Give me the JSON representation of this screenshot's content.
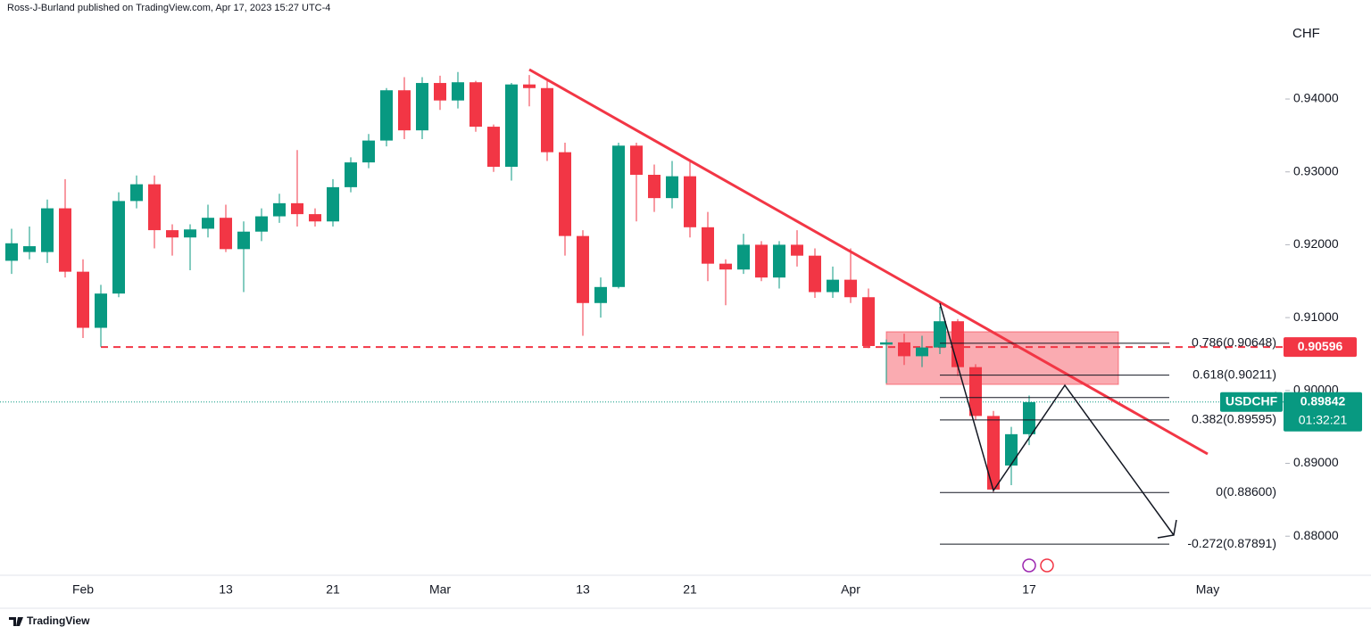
{
  "chart_data": {
    "type": "candlestick",
    "header": "Ross-J-Burland published on TradingView.com, Apr 17, 2023 15:27 UTC-4",
    "brand": "TradingView",
    "axis_title": "CHF",
    "symbol": "USDCHF",
    "countdown": "01:32:21",
    "up_color": "#089981",
    "down_color": "#f23645",
    "categories": [
      null,
      null,
      null,
      null,
      "Feb",
      null,
      null,
      null,
      null,
      null,
      null,
      null,
      "13",
      null,
      null,
      null,
      null,
      null,
      "21",
      null,
      null,
      null,
      null,
      null,
      "Mar",
      null,
      null,
      null,
      null,
      null,
      null,
      null,
      "13",
      null,
      null,
      null,
      null,
      null,
      "21",
      null,
      null,
      null,
      null,
      null,
      null,
      null,
      null,
      "Apr",
      null,
      null,
      null,
      null,
      null,
      null,
      null,
      null,
      null,
      "17",
      null,
      null,
      null,
      null,
      null,
      null,
      null,
      null,
      null,
      "May",
      null,
      null,
      null,
      null
    ],
    "open": [
      0.9178,
      0.919,
      0.919,
      0.925,
      0.9163,
      0.9086,
      0.9133,
      0.926,
      0.9283,
      0.922,
      0.921,
      0.9222,
      0.9237,
      0.9194,
      0.9218,
      0.9239,
      0.9257,
      0.9242,
      0.9232,
      0.9279,
      0.9313,
      0.9343,
      0.9412,
      0.9357,
      0.9422,
      0.9398,
      0.9423,
      0.9362,
      0.9307,
      0.942,
      0.9415,
      0.9327,
      0.9212,
      0.912,
      0.9142,
      0.9336,
      0.9296,
      0.9264,
      0.9294,
      0.9224,
      0.9174,
      0.9166,
      0.92,
      0.9155,
      0.92,
      0.9185,
      0.9135,
      0.9152,
      0.9128,
      0.9063,
      0.9066,
      0.9047,
      0.9059,
      0.9095,
      0.9032,
      0.8965,
      0.8897,
      0.894,
      null,
      null,
      null,
      null,
      null,
      null,
      null,
      null,
      null,
      null,
      null,
      null,
      null,
      null
    ],
    "high": [
      0.9222,
      0.9225,
      0.9262,
      0.929,
      0.918,
      0.9145,
      0.9272,
      0.9295,
      0.9295,
      0.9228,
      0.9228,
      0.9255,
      0.9255,
      0.9232,
      0.925,
      0.927,
      0.933,
      0.925,
      0.929,
      0.932,
      0.9352,
      0.9415,
      0.943,
      0.943,
      0.9432,
      0.9437,
      0.9425,
      0.9365,
      0.9422,
      0.9433,
      0.9425,
      0.934,
      0.922,
      0.9155,
      0.934,
      0.934,
      0.931,
      0.9315,
      0.9315,
      0.9245,
      0.918,
      0.9215,
      0.9205,
      0.9205,
      0.922,
      0.9195,
      0.917,
      0.9195,
      0.914,
      0.907,
      0.9078,
      0.9075,
      0.9115,
      0.9098,
      0.9036,
      0.8972,
      0.895,
      0.8993,
      null,
      null,
      null,
      null,
      null,
      null,
      null,
      null,
      null,
      null,
      null,
      null,
      null,
      null
    ],
    "low": [
      0.916,
      0.918,
      0.9175,
      0.9155,
      0.9072,
      0.906,
      0.9128,
      0.925,
      0.9195,
      0.9185,
      0.9165,
      0.921,
      0.919,
      0.9135,
      0.9205,
      0.923,
      0.9225,
      0.9225,
      0.9225,
      0.9272,
      0.9305,
      0.9335,
      0.9345,
      0.9345,
      0.9385,
      0.9387,
      0.9355,
      0.93,
      0.9288,
      0.939,
      0.9315,
      0.9185,
      0.9075,
      0.91,
      0.914,
      0.9232,
      0.9245,
      0.925,
      0.921,
      0.915,
      0.9117,
      0.916,
      0.915,
      0.914,
      0.917,
      0.9127,
      0.9127,
      0.912,
      0.9058,
      0.901,
      0.9035,
      0.9032,
      0.905,
      0.902,
      0.896,
      0.886,
      0.887,
      0.8925,
      null,
      null,
      null,
      null,
      null,
      null,
      null,
      null,
      null,
      null,
      null,
      null,
      null,
      null
    ],
    "close": [
      0.9202,
      0.9198,
      0.925,
      0.9163,
      0.9086,
      0.9133,
      0.926,
      0.9283,
      0.922,
      0.921,
      0.9221,
      0.9237,
      0.9194,
      0.9218,
      0.9239,
      0.9257,
      0.9242,
      0.9232,
      0.9279,
      0.9313,
      0.9343,
      0.9412,
      0.9357,
      0.9422,
      0.9398,
      0.9423,
      0.9362,
      0.9307,
      0.942,
      0.9415,
      0.9327,
      0.9212,
      0.912,
      0.9142,
      0.9336,
      0.9296,
      0.9264,
      0.9294,
      0.9224,
      0.9174,
      0.9166,
      0.92,
      0.9155,
      0.92,
      0.9185,
      0.9135,
      0.9152,
      0.9128,
      0.9061,
      0.9066,
      0.9047,
      0.9059,
      0.9095,
      0.9032,
      0.8965,
      0.8864,
      0.894,
      0.8984,
      null,
      null,
      null,
      null,
      null,
      null,
      null,
      null,
      null,
      null,
      null,
      null,
      null,
      null
    ],
    "ylim": [
      0.87464,
      0.95359
    ],
    "yticks": [
      {
        "value": 0.88,
        "label": "0.88000"
      },
      {
        "value": 0.89,
        "label": "0.89000"
      },
      {
        "value": 0.9,
        "label": "0.90000"
      },
      {
        "value": 0.91,
        "label": "0.91000"
      },
      {
        "value": 0.92,
        "label": "0.92000"
      },
      {
        "value": 0.93,
        "label": "0.93000"
      },
      {
        "value": 0.94,
        "label": "0.94000"
      }
    ],
    "last_price": {
      "value": 0.89842,
      "label": "0.89842"
    },
    "support": {
      "value": 0.90596,
      "label": "0.90596"
    },
    "fib_levels": [
      {
        "value": 0.90648,
        "label": "0.786(0.90648)"
      },
      {
        "value": 0.90211,
        "label": "0.618(0.90211)"
      },
      {
        "value": 0.89903,
        "label": "0.5("
      },
      {
        "value": 0.89595,
        "label": "0.382(0.89595)"
      },
      {
        "value": 0.886,
        "label": "0(0.88600)"
      },
      {
        "value": 0.87891,
        "label": "-0.272(0.87891)"
      }
    ]
  }
}
